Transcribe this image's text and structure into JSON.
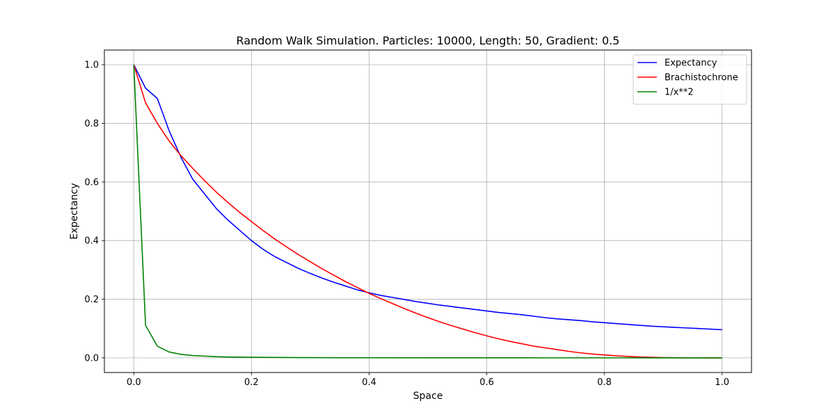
{
  "chart_data": {
    "type": "line",
    "title": "Random Walk Simulation. Particles: 10000, Length: 50, Gradient: 0.5",
    "xlabel": "Space",
    "ylabel": "Expectancy",
    "xlim": [
      -0.05,
      1.05
    ],
    "ylim": [
      -0.05,
      1.05
    ],
    "xticks": [
      0.0,
      0.2,
      0.4,
      0.6,
      0.8,
      1.0
    ],
    "xtick_labels": [
      "0.0",
      "0.2",
      "0.4",
      "0.6",
      "0.8",
      "1.0"
    ],
    "yticks": [
      0.0,
      0.2,
      0.4,
      0.6,
      0.8,
      1.0
    ],
    "ytick_labels": [
      "0.0",
      "0.2",
      "0.4",
      "0.6",
      "0.8",
      "1.0"
    ],
    "grid": true,
    "legend_position": "top-right",
    "series": [
      {
        "name": "Expectancy",
        "color": "#0000ff",
        "x": [
          0.0,
          0.02,
          0.04,
          0.06,
          0.08,
          0.1,
          0.12,
          0.14,
          0.16,
          0.18,
          0.2,
          0.22,
          0.24,
          0.26,
          0.28,
          0.3,
          0.32,
          0.34,
          0.36,
          0.38,
          0.4,
          0.42,
          0.44,
          0.46,
          0.48,
          0.5,
          0.52,
          0.54,
          0.56,
          0.58,
          0.6,
          0.62,
          0.64,
          0.66,
          0.68,
          0.7,
          0.72,
          0.74,
          0.76,
          0.78,
          0.8,
          0.82,
          0.84,
          0.86,
          0.88,
          0.9,
          0.92,
          0.94,
          0.96,
          0.98,
          1.0
        ],
        "y": [
          1.0,
          0.92,
          0.885,
          0.775,
          0.685,
          0.61,
          0.56,
          0.51,
          0.47,
          0.435,
          0.4,
          0.37,
          0.345,
          0.325,
          0.305,
          0.288,
          0.272,
          0.258,
          0.245,
          0.232,
          0.222,
          0.213,
          0.206,
          0.199,
          0.192,
          0.186,
          0.18,
          0.175,
          0.17,
          0.165,
          0.16,
          0.155,
          0.151,
          0.147,
          0.142,
          0.137,
          0.133,
          0.13,
          0.127,
          0.123,
          0.12,
          0.117,
          0.114,
          0.111,
          0.108,
          0.106,
          0.104,
          0.102,
          0.1,
          0.098,
          0.096
        ]
      },
      {
        "name": "Brachistochrone",
        "color": "#ff0000",
        "x": [
          0.0,
          0.02,
          0.04,
          0.06,
          0.08,
          0.1,
          0.12,
          0.14,
          0.16,
          0.18,
          0.2,
          0.22,
          0.24,
          0.26,
          0.28,
          0.3,
          0.32,
          0.34,
          0.36,
          0.38,
          0.4,
          0.42,
          0.44,
          0.46,
          0.48,
          0.5,
          0.52,
          0.54,
          0.56,
          0.58,
          0.6,
          0.62,
          0.64,
          0.66,
          0.68,
          0.7,
          0.72,
          0.74,
          0.76,
          0.78,
          0.8,
          0.82,
          0.84,
          0.86,
          0.88,
          0.9,
          0.92,
          0.94,
          0.96,
          0.98,
          1.0
        ],
        "y": [
          1.0,
          0.87,
          0.8,
          0.74,
          0.69,
          0.647,
          0.605,
          0.566,
          0.53,
          0.496,
          0.465,
          0.434,
          0.405,
          0.378,
          0.352,
          0.328,
          0.304,
          0.282,
          0.26,
          0.24,
          0.22,
          0.202,
          0.185,
          0.168,
          0.152,
          0.137,
          0.123,
          0.11,
          0.098,
          0.086,
          0.075,
          0.065,
          0.056,
          0.048,
          0.04,
          0.034,
          0.028,
          0.022,
          0.017,
          0.013,
          0.01,
          0.007,
          0.005,
          0.003,
          0.002,
          0.001,
          0.0005,
          0.0002,
          0.0001,
          0.0,
          0.0
        ]
      },
      {
        "name": "1/x**2",
        "color": "#008000",
        "x": [
          0.0,
          0.02,
          0.04,
          0.06,
          0.08,
          0.1,
          0.12,
          0.14,
          0.16,
          0.18,
          0.2,
          0.25,
          0.3,
          0.35,
          0.4,
          0.5,
          0.6,
          0.7,
          0.8,
          0.9,
          1.0
        ],
        "y": [
          1.0,
          0.111,
          0.04,
          0.02,
          0.012,
          0.008,
          0.006,
          0.004,
          0.003,
          0.0025,
          0.002,
          0.0013,
          0.0009,
          0.0006,
          0.0005,
          0.0003,
          0.0002,
          0.0001,
          0.0001,
          0.0,
          0.0
        ]
      }
    ]
  }
}
